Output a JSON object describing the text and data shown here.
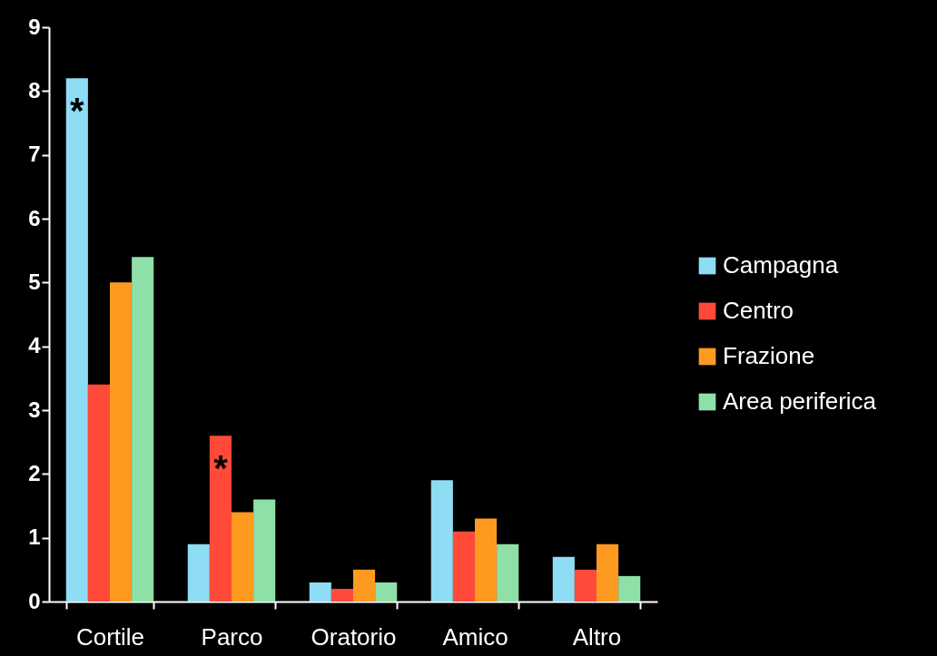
{
  "chart_data": {
    "type": "bar",
    "categories": [
      "Cortile",
      "Parco",
      "Oratorio",
      "Amico",
      "Altro"
    ],
    "series": [
      {
        "name": "Campagna",
        "color": "#8fdcf5",
        "values": [
          8.2,
          0.9,
          0.3,
          1.9,
          0.7
        ]
      },
      {
        "name": "Centro",
        "color": "#ff4a3a",
        "values": [
          3.4,
          2.6,
          0.2,
          1.1,
          0.5
        ]
      },
      {
        "name": "Frazione",
        "color": "#ff9a20",
        "values": [
          5.0,
          1.4,
          0.5,
          1.3,
          0.9
        ]
      },
      {
        "name": "Area periferica",
        "color": "#8fe0a8",
        "values": [
          5.4,
          1.6,
          0.3,
          0.9,
          0.4
        ]
      }
    ],
    "ylim": [
      0,
      9
    ],
    "yticks": [
      0,
      1,
      2,
      3,
      4,
      5,
      6,
      7,
      8,
      9
    ],
    "grid": false,
    "legend": "right",
    "annotations": [
      "*",
      {
        "text": "*",
        "x": "Parco",
        "y": 2.6
      }
    ]
  }
}
